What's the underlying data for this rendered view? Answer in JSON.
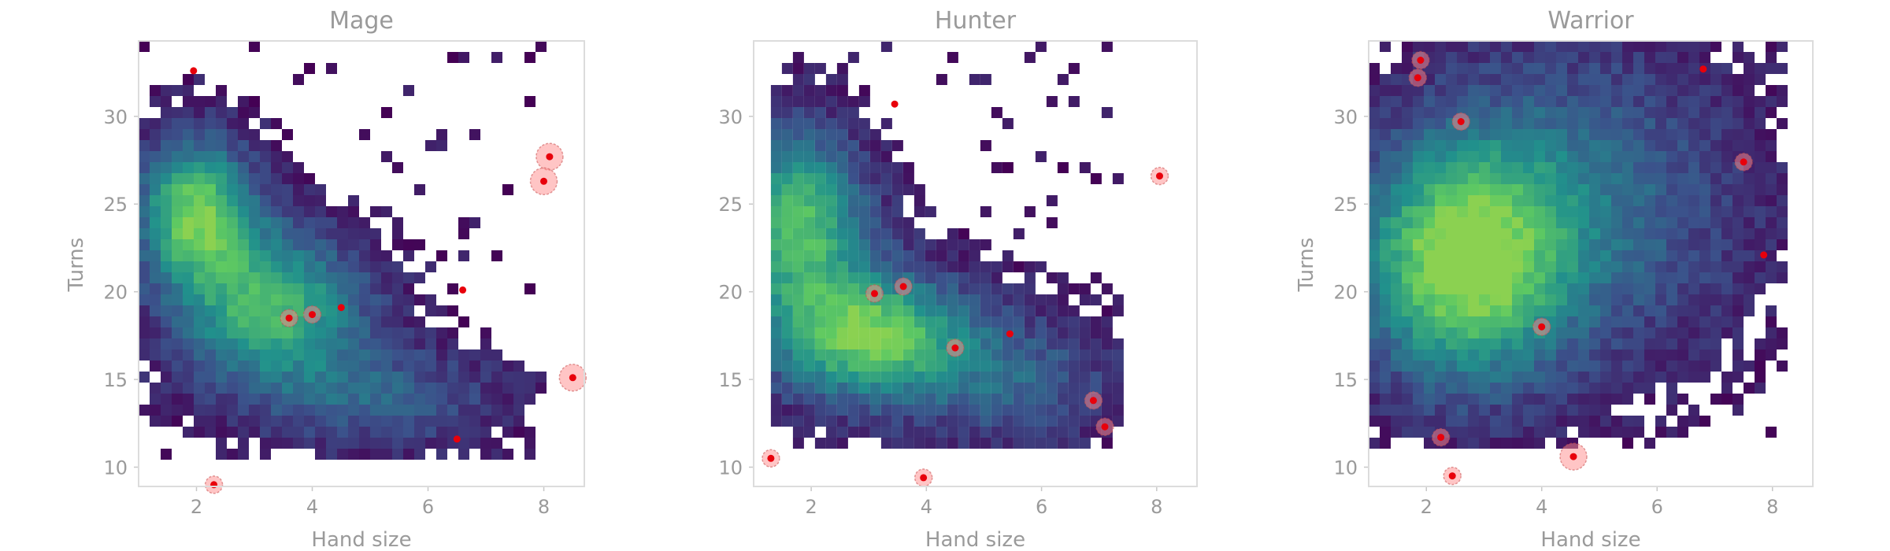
{
  "chart_data": [
    {
      "type": "heatmap",
      "title": "Mage",
      "xlabel": "Hand size",
      "ylabel": "Turns",
      "xlim": [
        1.0,
        8.7
      ],
      "ylim": [
        8.9,
        34.3
      ],
      "xticks": [
        2,
        4,
        6,
        8
      ],
      "yticks": [
        10,
        15,
        20,
        25,
        30
      ],
      "colormap": "viridis",
      "density": {
        "x_range": [
          1.0,
          8.0
        ],
        "y_range": [
          10.5,
          34.3
        ],
        "peaks": [
          {
            "x": 2.0,
            "y": 24.5,
            "sx": 0.7,
            "sy": 2.8,
            "w": 1.0
          },
          {
            "x": 3.3,
            "y": 19.0,
            "sx": 1.1,
            "sy": 3.0,
            "w": 0.85
          },
          {
            "x": 5.2,
            "y": 14.0,
            "sx": 1.4,
            "sy": 2.0,
            "w": 0.35
          }
        ]
      },
      "highlights": [
        {
          "x": 1.95,
          "y": 32.6,
          "r": 0
        },
        {
          "x": 2.3,
          "y": 9.0,
          "r": 1
        },
        {
          "x": 3.6,
          "y": 18.5,
          "r": 1
        },
        {
          "x": 4.0,
          "y": 18.7,
          "r": 1
        },
        {
          "x": 4.5,
          "y": 19.1,
          "r": 0
        },
        {
          "x": 6.6,
          "y": 20.1,
          "r": 0
        },
        {
          "x": 6.5,
          "y": 11.6,
          "r": 0
        },
        {
          "x": 8.1,
          "y": 27.7,
          "r": 2
        },
        {
          "x": 8.0,
          "y": 26.3,
          "r": 2
        },
        {
          "x": 8.5,
          "y": 15.1,
          "r": 2
        }
      ]
    },
    {
      "type": "heatmap",
      "title": "Hunter",
      "xlabel": "Hand size",
      "ylabel": "",
      "xlim": [
        1.0,
        8.7
      ],
      "ylim": [
        8.9,
        34.3
      ],
      "xticks": [
        2,
        4,
        6,
        8
      ],
      "yticks": [
        10,
        15,
        20,
        25,
        30
      ],
      "colormap": "viridis",
      "density": {
        "x_range": [
          1.3,
          7.3
        ],
        "y_range": [
          11.5,
          34.3
        ],
        "peaks": [
          {
            "x": 1.8,
            "y": 24.0,
            "sx": 0.8,
            "sy": 3.5,
            "w": 0.9
          },
          {
            "x": 3.0,
            "y": 17.5,
            "sx": 1.2,
            "sy": 2.5,
            "w": 1.0
          },
          {
            "x": 5.5,
            "y": 15.0,
            "sx": 1.3,
            "sy": 2.5,
            "w": 0.35
          }
        ]
      },
      "highlights": [
        {
          "x": 3.45,
          "y": 30.7,
          "r": 0
        },
        {
          "x": 8.05,
          "y": 26.6,
          "r": 1
        },
        {
          "x": 3.1,
          "y": 19.9,
          "r": 1
        },
        {
          "x": 3.6,
          "y": 20.3,
          "r": 1
        },
        {
          "x": 4.5,
          "y": 16.8,
          "r": 1
        },
        {
          "x": 5.45,
          "y": 17.6,
          "r": 0
        },
        {
          "x": 6.9,
          "y": 13.8,
          "r": 1
        },
        {
          "x": 7.1,
          "y": 12.3,
          "r": 1
        },
        {
          "x": 1.3,
          "y": 10.5,
          "r": 1
        },
        {
          "x": 3.95,
          "y": 9.4,
          "r": 1
        }
      ]
    },
    {
      "type": "heatmap",
      "title": "Warrior",
      "xlabel": "Hand size",
      "ylabel": "Turns",
      "xlim": [
        1.0,
        8.7
      ],
      "ylim": [
        8.9,
        34.3
      ],
      "xticks": [
        2,
        4,
        6,
        8
      ],
      "yticks": [
        10,
        15,
        20,
        25,
        30
      ],
      "colormap": "viridis",
      "density": {
        "x_range": [
          1.0,
          8.1
        ],
        "y_range": [
          11.5,
          34.3
        ],
        "peaks": [
          {
            "x": 2.6,
            "y": 21.5,
            "sx": 1.2,
            "sy": 4.5,
            "w": 1.0
          },
          {
            "x": 4.5,
            "y": 25.0,
            "sx": 2.0,
            "sy": 6.0,
            "w": 0.45
          }
        ]
      },
      "highlights": [
        {
          "x": 1.9,
          "y": 33.2,
          "r": 1
        },
        {
          "x": 1.85,
          "y": 32.2,
          "r": 1
        },
        {
          "x": 2.6,
          "y": 29.7,
          "r": 1
        },
        {
          "x": 6.8,
          "y": 32.7,
          "r": 0
        },
        {
          "x": 7.5,
          "y": 27.4,
          "r": 1
        },
        {
          "x": 7.85,
          "y": 22.1,
          "r": 0
        },
        {
          "x": 4.0,
          "y": 18.0,
          "r": 1
        },
        {
          "x": 2.25,
          "y": 11.7,
          "r": 1
        },
        {
          "x": 4.55,
          "y": 10.6,
          "r": 2
        },
        {
          "x": 2.45,
          "y": 9.5,
          "r": 1
        }
      ]
    }
  ]
}
